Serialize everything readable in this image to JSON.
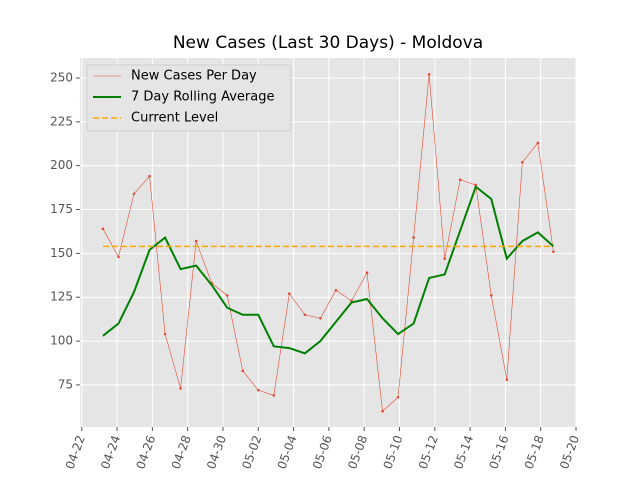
{
  "chart_data": {
    "type": "line",
    "title": "New Cases (Last 30 Days) - Moldova",
    "x": [
      113.2,
      114.08,
      114.96,
      115.84,
      116.72,
      117.6,
      118.48,
      119.36,
      120.24,
      121.12,
      122.0,
      122.88,
      123.76,
      124.64,
      125.52,
      126.4,
      127.28,
      128.16,
      129.04,
      129.92,
      130.8,
      131.68,
      132.56,
      133.44,
      134.32,
      135.2,
      136.08,
      136.96,
      137.84,
      138.72
    ],
    "series": [
      {
        "name": "New Cases Per Day",
        "color": "#E24A33",
        "values": [
          164,
          148,
          184,
          194,
          104,
          73,
          157,
          133,
          126,
          83,
          72,
          69,
          127,
          115,
          113,
          129,
          123,
          139,
          60,
          68,
          159,
          252,
          147,
          192,
          189,
          126,
          78,
          202,
          213,
          151
        ]
      },
      {
        "name": "7 Day Rolling Average",
        "color": "#008000",
        "values": [
          103,
          110,
          128,
          152,
          159,
          141,
          143,
          132,
          119,
          115,
          115,
          97,
          96,
          93,
          100,
          111,
          122,
          124,
          113,
          104,
          110,
          136,
          138,
          163,
          188,
          181,
          147,
          157,
          162,
          154
        ]
      }
    ],
    "current_level": {
      "name": "Current Level",
      "value": 154,
      "color": "#FFA500"
    },
    "xlim": [
      111.9,
      140.0
    ],
    "xticks": [
      {
        "value": 112,
        "label": "04-22"
      },
      {
        "value": 114,
        "label": "04-24"
      },
      {
        "value": 116,
        "label": "04-26"
      },
      {
        "value": 118,
        "label": "04-28"
      },
      {
        "value": 120,
        "label": "04-30"
      },
      {
        "value": 122,
        "label": "05-02"
      },
      {
        "value": 124,
        "label": "05-04"
      },
      {
        "value": 126,
        "label": "05-06"
      },
      {
        "value": 128,
        "label": "05-08"
      },
      {
        "value": 130,
        "label": "05-10"
      },
      {
        "value": 132,
        "label": "05-12"
      },
      {
        "value": 134,
        "label": "05-14"
      },
      {
        "value": 136,
        "label": "05-16"
      },
      {
        "value": 138,
        "label": "05-18"
      },
      {
        "value": 140,
        "label": "05-20"
      }
    ],
    "ylim": [
      51,
      261.4
    ],
    "yticks": [
      75,
      100,
      125,
      150,
      175,
      200,
      225,
      250
    ],
    "grid": true,
    "legend": "upper left"
  }
}
